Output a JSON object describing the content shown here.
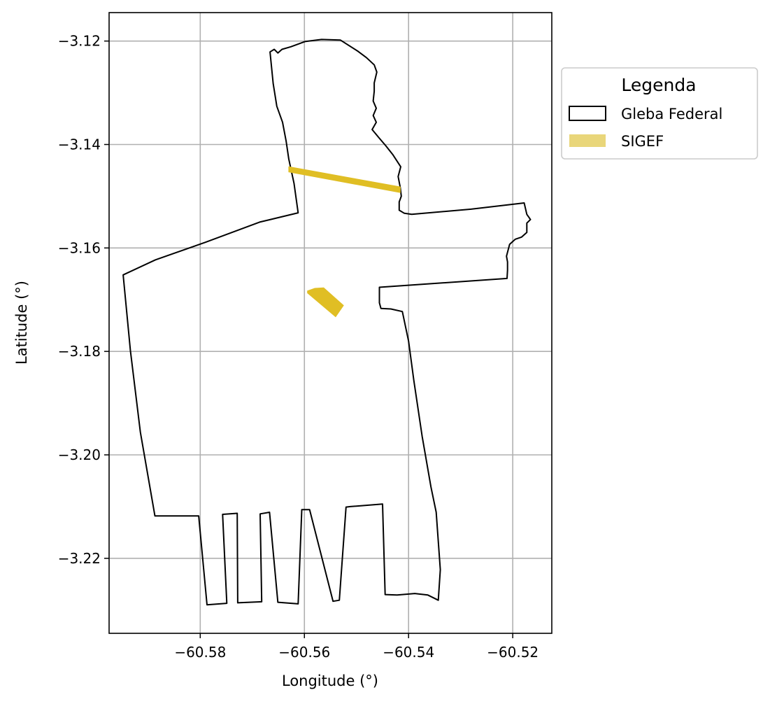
{
  "chart_data": {
    "type": "map",
    "xlabel": "Longitude (°)",
    "ylabel": "Latitude (°)",
    "xlim": [
      -60.5975,
      -60.5125
    ],
    "ylim": [
      -3.2345,
      -3.1145
    ],
    "grid": true,
    "x_ticks": [
      {
        "value": -60.58,
        "label": "−60.58"
      },
      {
        "value": -60.56,
        "label": "−60.56"
      },
      {
        "value": -60.54,
        "label": "−60.54"
      },
      {
        "value": -60.52,
        "label": "−60.52"
      }
    ],
    "y_ticks": [
      {
        "value": -3.12,
        "label": "−3.12"
      },
      {
        "value": -3.14,
        "label": "−3.14"
      },
      {
        "value": -3.16,
        "label": "−3.16"
      },
      {
        "value": -3.18,
        "label": "−3.18"
      },
      {
        "value": -3.2,
        "label": "−3.20"
      },
      {
        "value": -3.22,
        "label": "−3.22"
      }
    ],
    "legend": {
      "title": "Legenda",
      "placement": "outside-right-top",
      "entries": [
        {
          "label": "Gleba Federal",
          "style": "outline",
          "color": "#000000"
        },
        {
          "label": "SIGEF",
          "style": "fill",
          "color": "#e9d67a"
        }
      ]
    },
    "layers": [
      {
        "name": "Gleba Federal",
        "kind": "polygon-outline",
        "color": "#000000",
        "coords": [
          [
            -60.5666,
            -3.1221
          ],
          [
            -60.5658,
            -3.1216
          ],
          [
            -60.5651,
            -3.1223
          ],
          [
            -60.5643,
            -3.1216
          ],
          [
            -60.5626,
            -3.1211
          ],
          [
            -60.5599,
            -3.1201
          ],
          [
            -60.5567,
            -3.1197
          ],
          [
            -60.5531,
            -3.1198
          ],
          [
            -60.5497,
            -3.122
          ],
          [
            -60.5481,
            -3.1232
          ],
          [
            -60.5466,
            -3.1246
          ],
          [
            -60.5461,
            -3.126
          ],
          [
            -60.5466,
            -3.1281
          ],
          [
            -60.5466,
            -3.1297
          ],
          [
            -60.5468,
            -3.1316
          ],
          [
            -60.5462,
            -3.133
          ],
          [
            -60.5468,
            -3.1344
          ],
          [
            -60.5462,
            -3.1357
          ],
          [
            -60.547,
            -3.1371
          ],
          [
            -60.5456,
            -3.1388
          ],
          [
            -60.5444,
            -3.1402
          ],
          [
            -60.543,
            -3.142
          ],
          [
            -60.5415,
            -3.1443
          ],
          [
            -60.542,
            -3.1462
          ],
          [
            -60.5416,
            -3.1483
          ],
          [
            -60.5414,
            -3.15
          ],
          [
            -60.5418,
            -3.1511
          ],
          [
            -60.5418,
            -3.1527
          ],
          [
            -60.5408,
            -3.1533
          ],
          [
            -60.5394,
            -3.1535
          ],
          [
            -60.528,
            -3.1525
          ],
          [
            -60.5178,
            -3.1513
          ],
          [
            -60.5173,
            -3.1535
          ],
          [
            -60.5166,
            -3.1545
          ],
          [
            -60.5173,
            -3.1552
          ],
          [
            -60.5173,
            -3.157
          ],
          [
            -60.5183,
            -3.1579
          ],
          [
            -60.5195,
            -3.1583
          ],
          [
            -60.5206,
            -3.1593
          ],
          [
            -60.5212,
            -3.1616
          ],
          [
            -60.521,
            -3.1627
          ],
          [
            -60.521,
            -3.1643
          ],
          [
            -60.5211,
            -3.1659
          ],
          [
            -60.5456,
            -3.1676
          ],
          [
            -60.5456,
            -3.1706
          ],
          [
            -60.5453,
            -3.1717
          ],
          [
            -60.5434,
            -3.1718
          ],
          [
            -60.5412,
            -3.1723
          ],
          [
            -60.54,
            -3.178
          ],
          [
            -60.539,
            -3.1856
          ],
          [
            -60.5374,
            -3.1964
          ],
          [
            -60.5357,
            -3.2062
          ],
          [
            -60.5347,
            -3.2111
          ],
          [
            -60.5339,
            -3.2222
          ],
          [
            -60.5343,
            -3.2281
          ],
          [
            -60.5363,
            -3.2271
          ],
          [
            -60.5388,
            -3.2268
          ],
          [
            -60.5422,
            -3.2271
          ],
          [
            -60.5445,
            -3.227
          ],
          [
            -60.545,
            -3.2095
          ],
          [
            -60.5512,
            -3.21
          ],
          [
            -60.552,
            -3.2101
          ],
          [
            -60.5533,
            -3.2281
          ],
          [
            -60.5545,
            -3.2283
          ],
          [
            -60.559,
            -3.2106
          ],
          [
            -60.5605,
            -3.2106
          ],
          [
            -60.5612,
            -3.2288
          ],
          [
            -60.5651,
            -3.2285
          ],
          [
            -60.5667,
            -3.2111
          ],
          [
            -60.5685,
            -3.2114
          ],
          [
            -60.5682,
            -3.2284
          ],
          [
            -60.5728,
            -3.2286
          ],
          [
            -60.5729,
            -3.2113
          ],
          [
            -60.5757,
            -3.2115
          ],
          [
            -60.5749,
            -3.2287
          ],
          [
            -60.5787,
            -3.229
          ],
          [
            -60.5803,
            -3.2118
          ],
          [
            -60.5887,
            -3.2118
          ],
          [
            -60.5915,
            -3.1956
          ],
          [
            -60.5934,
            -3.1799
          ],
          [
            -60.5948,
            -3.1652
          ],
          [
            -60.5886,
            -3.1623
          ],
          [
            -60.579,
            -3.1589
          ],
          [
            -60.5686,
            -3.155
          ],
          [
            -60.5612,
            -3.1532
          ],
          [
            -60.562,
            -3.1475
          ],
          [
            -60.563,
            -3.1428
          ],
          [
            -60.5635,
            -3.1394
          ],
          [
            -60.5642,
            -3.1357
          ],
          [
            -60.5653,
            -3.1326
          ],
          [
            -60.566,
            -3.1282
          ],
          [
            -60.5666,
            -3.1221
          ]
        ]
      },
      {
        "name": "SIGEF",
        "kind": "filled-polygon",
        "color": "#e0be24",
        "coords": [
          [
            -60.563,
            -3.1443
          ],
          [
            -60.5416,
            -3.1482
          ],
          [
            -60.5416,
            -3.1493
          ],
          [
            -60.563,
            -3.1453
          ]
        ]
      },
      {
        "name": "SIGEF",
        "kind": "filled-polygon",
        "color": "#e0be24",
        "coords": [
          [
            -60.5594,
            -3.1683
          ],
          [
            -60.558,
            -3.1678
          ],
          [
            -60.5563,
            -3.1677
          ],
          [
            -60.5525,
            -3.1711
          ],
          [
            -60.554,
            -3.1733
          ],
          [
            -60.5594,
            -3.1687
          ]
        ]
      }
    ]
  }
}
